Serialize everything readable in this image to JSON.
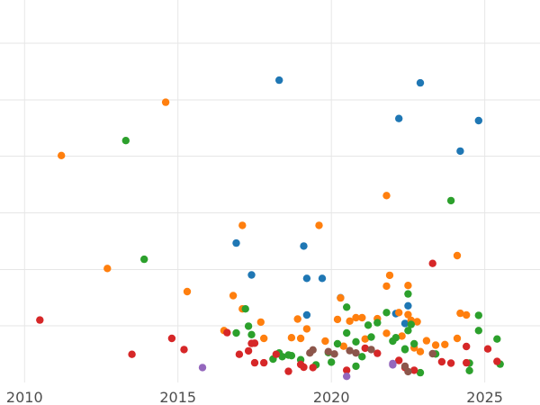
{
  "chart_data": {
    "type": "scatter",
    "title": "",
    "xlabel": "",
    "ylabel": "",
    "xlim": [
      2009.2,
      2026.8
    ],
    "ylim": [
      0,
      100
    ],
    "x_ticks": [
      2010,
      2015,
      2020,
      2025
    ],
    "x_tick_labels": [
      "2010",
      "2015",
      "2020",
      "2025"
    ],
    "y_grid": [
      16.7,
      33.3,
      50.0,
      66.7,
      83.3,
      100.0
    ],
    "grid": true,
    "legend": "none",
    "background": "#ffffff",
    "grid_color": "#e6e6e6",
    "series": [
      {
        "color": "#1f77b4",
        "points": [
          [
            2018.3,
            89.1
          ],
          [
            2022.2,
            77.8
          ],
          [
            2022.9,
            88.3
          ],
          [
            2024.2,
            68.2
          ],
          [
            2024.8,
            77.2
          ],
          [
            2016.9,
            41.1
          ],
          [
            2017.4,
            31.7
          ],
          [
            2019.1,
            40.2
          ],
          [
            2019.2,
            30.7
          ],
          [
            2019.7,
            30.7
          ],
          [
            2019.2,
            19.9
          ],
          [
            2020.3,
            25.0
          ],
          [
            2022.1,
            20.3
          ],
          [
            2022.5,
            22.6
          ],
          [
            2022.4,
            17.4
          ]
        ]
      },
      {
        "color": "#ff7f0e",
        "points": [
          [
            2011.2,
            66.9
          ],
          [
            2014.6,
            82.6
          ],
          [
            2012.7,
            33.6
          ],
          [
            2015.3,
            26.8
          ],
          [
            2017.1,
            46.3
          ],
          [
            2019.6,
            46.3
          ],
          [
            2021.8,
            55.1
          ],
          [
            2024.1,
            37.4
          ],
          [
            2016.8,
            25.6
          ],
          [
            2017.1,
            21.7
          ],
          [
            2017.7,
            17.8
          ],
          [
            2016.5,
            15.3
          ],
          [
            2017.8,
            13.0
          ],
          [
            2018.9,
            18.7
          ],
          [
            2019.2,
            15.8
          ],
          [
            2019.0,
            13.0
          ],
          [
            2019.8,
            12.2
          ],
          [
            2020.2,
            18.6
          ],
          [
            2020.3,
            24.9
          ],
          [
            2020.6,
            18.1
          ],
          [
            2020.8,
            19.1
          ],
          [
            2021.0,
            19.1
          ],
          [
            2021.5,
            18.8
          ],
          [
            2021.1,
            12.8
          ],
          [
            2020.4,
            10.7
          ],
          [
            2021.8,
            28.4
          ],
          [
            2021.9,
            31.6
          ],
          [
            2022.2,
            20.6
          ],
          [
            2022.5,
            28.6
          ],
          [
            2022.6,
            18.3
          ],
          [
            2022.8,
            17.9
          ],
          [
            2021.8,
            14.5
          ],
          [
            2022.3,
            13.7
          ],
          [
            2022.7,
            10.2
          ],
          [
            2022.9,
            9.1
          ],
          [
            2023.4,
            11.0
          ],
          [
            2023.7,
            11.2
          ],
          [
            2024.1,
            13.0
          ],
          [
            2024.2,
            20.4
          ],
          [
            2024.4,
            19.9
          ],
          [
            2022.5,
            20.0
          ],
          [
            2023.1,
            12.3
          ],
          [
            2018.7,
            13.2
          ]
        ]
      },
      {
        "color": "#2ca02c",
        "points": [
          [
            2013.3,
            71.3
          ],
          [
            2013.9,
            36.3
          ],
          [
            2023.9,
            53.6
          ],
          [
            2017.2,
            21.7
          ],
          [
            2017.3,
            16.6
          ],
          [
            2016.9,
            14.6
          ],
          [
            2017.4,
            14.1
          ],
          [
            2018.3,
            8.7
          ],
          [
            2018.4,
            7.6
          ],
          [
            2018.7,
            7.9
          ],
          [
            2019.0,
            6.7
          ],
          [
            2019.5,
            5.2
          ],
          [
            2020.0,
            6.0
          ],
          [
            2020.2,
            11.4
          ],
          [
            2020.5,
            14.6
          ],
          [
            2020.5,
            22.2
          ],
          [
            2020.8,
            12.0
          ],
          [
            2021.2,
            16.9
          ],
          [
            2021.3,
            13.4
          ],
          [
            2021.5,
            17.6
          ],
          [
            2021.8,
            20.6
          ],
          [
            2022.1,
            13.2
          ],
          [
            2022.5,
            26.1
          ],
          [
            2022.7,
            11.4
          ],
          [
            2022.0,
            12.2
          ],
          [
            2022.5,
            15.3
          ],
          [
            2022.6,
            17.1
          ],
          [
            2022.9,
            2.9
          ],
          [
            2022.4,
            9.9
          ],
          [
            2023.4,
            8.4
          ],
          [
            2024.5,
            5.7
          ],
          [
            2024.8,
            19.8
          ],
          [
            2024.8,
            15.3
          ],
          [
            2025.4,
            12.8
          ],
          [
            2025.5,
            5.4
          ],
          [
            2020.8,
            4.8
          ],
          [
            2022.4,
            9.7
          ],
          [
            2024.5,
            3.5
          ],
          [
            2019.9,
            8.8
          ],
          [
            2018.1,
            6.9
          ],
          [
            2021.0,
            7.6
          ],
          [
            2018.6,
            8.1
          ]
        ]
      },
      {
        "color": "#d62728",
        "points": [
          [
            2010.5,
            18.4
          ],
          [
            2013.5,
            8.3
          ],
          [
            2014.8,
            13.0
          ],
          [
            2015.2,
            9.7
          ],
          [
            2016.6,
            14.7
          ],
          [
            2017.0,
            8.3
          ],
          [
            2017.3,
            9.3
          ],
          [
            2017.4,
            11.5
          ],
          [
            2017.5,
            11.6
          ],
          [
            2017.5,
            5.8
          ],
          [
            2017.8,
            5.8
          ],
          [
            2018.2,
            8.3
          ],
          [
            2018.6,
            3.3
          ],
          [
            2019.0,
            5.3
          ],
          [
            2019.4,
            4.4
          ],
          [
            2020.5,
            3.6
          ],
          [
            2021.1,
            10.1
          ],
          [
            2021.5,
            8.6
          ],
          [
            2022.4,
            4.4
          ],
          [
            2022.2,
            6.5
          ],
          [
            2022.7,
            3.6
          ],
          [
            2023.3,
            35.1
          ],
          [
            2023.6,
            6.1
          ],
          [
            2023.9,
            5.7
          ],
          [
            2024.4,
            10.6
          ],
          [
            2024.4,
            5.8
          ],
          [
            2025.1,
            9.9
          ],
          [
            2025.4,
            6.2
          ],
          [
            2019.1,
            4.5
          ]
        ]
      },
      {
        "color": "#9467bd",
        "points": [
          [
            2015.8,
            4.4
          ],
          [
            2020.5,
            1.8
          ],
          [
            2022.0,
            5.6
          ],
          [
            2022.0,
            5.2
          ]
        ]
      },
      {
        "color": "#8c564b",
        "points": [
          [
            2019.4,
            9.6
          ],
          [
            2019.9,
            9.1
          ],
          [
            2020.1,
            8.4
          ],
          [
            2020.6,
            9.4
          ],
          [
            2020.8,
            8.7
          ],
          [
            2021.3,
            9.7
          ],
          [
            2022.4,
            4.8
          ],
          [
            2022.5,
            3.2
          ],
          [
            2023.3,
            8.5
          ],
          [
            2019.3,
            8.7
          ]
        ]
      }
    ]
  }
}
